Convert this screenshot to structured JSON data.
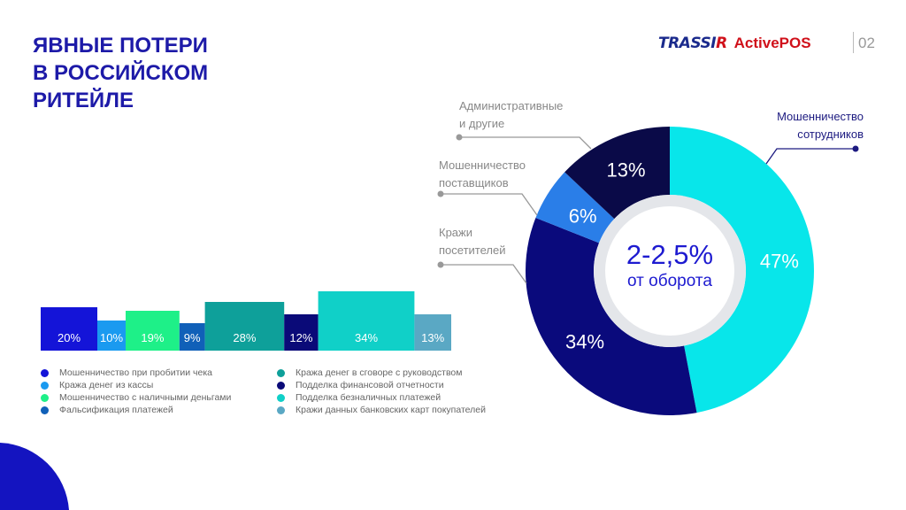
{
  "title": [
    "ЯВНЫЕ ПОТЕРИ",
    "В РОССИЙСКОМ",
    "РИТЕЙЛЕ"
  ],
  "logo": {
    "brand_main": "TRASSI",
    "brand_r": "R",
    "product": "ActivePOS"
  },
  "page_number": "02",
  "chart_data": [
    {
      "type": "bar",
      "variant": "variable-width (width proportional to value)",
      "categories": [
        "Мошенничество при пробитии чека",
        "Кража денег из кассы",
        "Мошенничество с наличными деньгами",
        "Фальсификация платежей",
        "Кража денег в сговоре с руководством",
        "Подделка финансовой отчетности",
        "Подделка безналичных платежей",
        "Кражи данных банковских карт покупателей"
      ],
      "values": [
        20,
        10,
        19,
        9,
        28,
        12,
        34,
        13
      ],
      "labels": [
        "20%",
        "10%",
        "19%",
        "9%",
        "28%",
        "12%",
        "34%",
        "13%"
      ],
      "colors": [
        "#1414d8",
        "#1a9af0",
        "#1ef088",
        "#1060b8",
        "#0ea09a",
        "#0a0a78",
        "#10d0c8",
        "#5aa8c4"
      ],
      "legend_placement": "bottom",
      "grid": false
    },
    {
      "type": "pie",
      "variant": "donut",
      "categories": [
        "Мошенничество сотрудников",
        "Кражи посетителей",
        "Мошенничество поставщиков",
        "Административные и другие"
      ],
      "label_lines": [
        [
          "Мошенничество",
          "сотрудников"
        ],
        [
          "Кражи",
          "посетителей"
        ],
        [
          "Мошенничество",
          "поставщиков"
        ],
        [
          "Административные",
          "и другие"
        ]
      ],
      "values": [
        47,
        34,
        6,
        13
      ],
      "labels": [
        "47%",
        "34%",
        "6%",
        "13%"
      ],
      "colors": [
        "#08e6ea",
        "#0a0a7c",
        "#2a7ee8",
        "#0a0a48"
      ],
      "center_text": {
        "value": "2-2,5%",
        "caption": "от оборота"
      }
    }
  ]
}
